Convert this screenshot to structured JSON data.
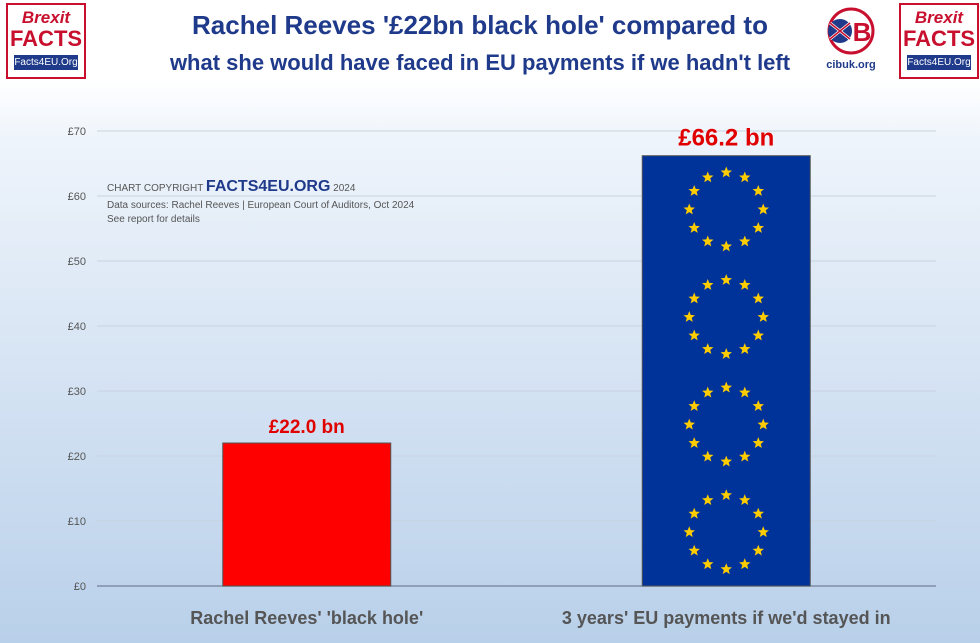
{
  "header": {
    "title_line1": "Rachel Reeves '£22bn black hole' compared to",
    "title_line2": "what she would have faced in EU payments if we hadn't left",
    "logo_left": {
      "top": "Brexit",
      "middle": "FACTS",
      "bottom": "Facts4EU.Org"
    },
    "logo_right": {
      "top": "Brexit",
      "middle": "FACTS",
      "bottom": "Facts4EU.Org"
    },
    "logo_cibuk": {
      "url": "cibuk.org"
    }
  },
  "caption": {
    "prefix": "CHART COPYRIGHT",
    "brand": "FACTS4EU.ORG",
    "year": "2024",
    "sources": "Data sources: Rachel Reeves | European Court of Auditors, Oct 2024",
    "note": "See report for details"
  },
  "chart_data": {
    "type": "bar",
    "title": "Rachel Reeves '£22bn black hole' compared to what she would have faced in EU payments if we hadn't left",
    "categories": [
      "Rachel Reeves' 'black hole'",
      "3 years' EU payments if we'd stayed in"
    ],
    "values": [
      22.0,
      66.2
    ],
    "data_labels": [
      "£22.0 bn",
      "£66.2 bn"
    ],
    "ylim": [
      0,
      70
    ],
    "yticks": [
      0,
      10,
      20,
      30,
      40,
      50,
      60,
      70
    ],
    "ytick_labels": [
      "£0",
      "£10",
      "£20",
      "£30",
      "£40",
      "£50",
      "£60",
      "£70"
    ],
    "grid": true,
    "colors": {
      "bar1": "#ff0000",
      "bar2": "#003399",
      "stars": "#ffcc00",
      "label": "#e00000"
    }
  }
}
